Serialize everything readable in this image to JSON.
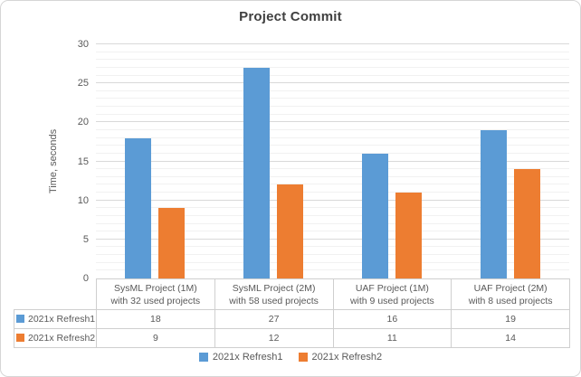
{
  "chart_data": {
    "type": "bar",
    "title": "Project Commit",
    "xlabel": "",
    "ylabel": "Time, seconds",
    "ylim": [
      0,
      30
    ],
    "y_major_step": 5,
    "y_minor_step": 1,
    "y_tick_labels": [
      "0",
      "5",
      "10",
      "15",
      "20",
      "25",
      "30"
    ],
    "grid": "horizontal major+minor",
    "legend_position": "bottom",
    "data_table_shown": true,
    "categories": [
      {
        "lines": [
          "SysML Project (1M)",
          "with 32 used projects"
        ]
      },
      {
        "lines": [
          "SysML Project (2M)",
          "with 58 used projects"
        ]
      },
      {
        "lines": [
          "UAF Project (1M)",
          "with 9 used projects"
        ]
      },
      {
        "lines": [
          "UAF Project (2M)",
          "with 8 used projects"
        ]
      }
    ],
    "series": [
      {
        "name": "2021x Refresh1",
        "color": "#5B9BD5",
        "values": [
          18,
          27,
          16,
          19
        ]
      },
      {
        "name": "2021x Refresh2",
        "color": "#ED7D31",
        "values": [
          9,
          12,
          11,
          14
        ]
      }
    ]
  }
}
